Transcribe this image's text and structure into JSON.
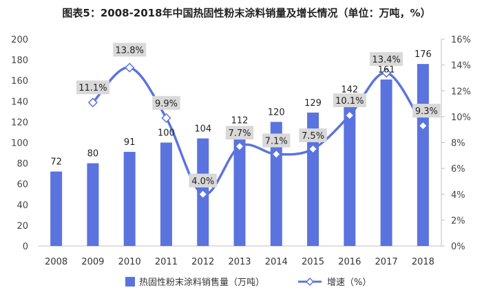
{
  "chart_data": {
    "type": "bar",
    "title": "图表5：2008-2018年中国热固性粉末涂料销量及增长情况（单位：万吨，%）",
    "categories": [
      "2008",
      "2009",
      "2010",
      "2011",
      "2012",
      "2013",
      "2014",
      "2015",
      "2016",
      "2017",
      "2018"
    ],
    "series": [
      {
        "name": "热固性粉末涂料销售量（万吨）",
        "type": "bar",
        "axis": "left",
        "values": [
          72,
          80,
          91,
          100,
          104,
          112,
          120,
          129,
          142,
          161,
          176
        ],
        "labels": [
          "72",
          "80",
          "91",
          "100",
          "104",
          "112",
          "120",
          "129",
          "142",
          "161",
          "176"
        ]
      },
      {
        "name": "增速（%）",
        "type": "line",
        "axis": "right",
        "values": [
          null,
          11.1,
          13.8,
          9.9,
          4.0,
          7.7,
          7.1,
          7.5,
          10.1,
          13.4,
          9.3
        ],
        "labels": [
          "",
          "11.1%",
          "13.8%",
          "9.9%",
          "4.0%",
          "7.7%",
          "7.1%",
          "7.5%",
          "10.1%",
          "13.4%",
          "9.3%"
        ]
      }
    ],
    "y_left": {
      "min": 0,
      "max": 200,
      "ticks": [
        "0",
        "20",
        "40",
        "60",
        "80",
        "100",
        "120",
        "140",
        "160",
        "180",
        "200"
      ]
    },
    "y_right": {
      "min": 0,
      "max": 16,
      "ticks": [
        "0%",
        "2%",
        "4%",
        "6%",
        "8%",
        "10%",
        "12%",
        "14%",
        "16%"
      ]
    },
    "legend_position": "bottom",
    "grid": false,
    "colors": {
      "bar": "#5b73de",
      "line": "#5b73de",
      "label_box": "#d9d9d9",
      "axis": "#bfbfbf"
    }
  }
}
